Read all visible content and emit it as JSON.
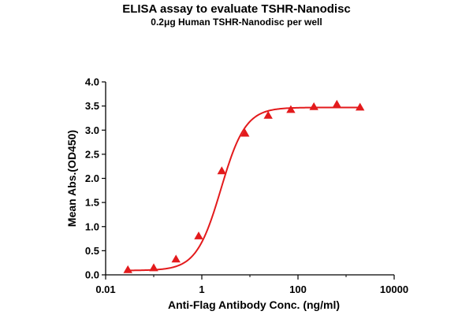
{
  "chart_data": {
    "type": "scatter",
    "title": "ELISA assay to evaluate TSHR-Nanodisc",
    "subtitle": "0.2μg Human TSHR-Nanodisc per well",
    "xlabel": "Anti-Flag Antibody Conc. (ng/ml)",
    "ylabel": "Mean Abs.(OD450)",
    "x_scale": "log",
    "xlim": [
      0.01,
      10000
    ],
    "ylim": [
      0,
      4.0
    ],
    "x_ticks": [
      {
        "value": 0.01,
        "label": "0.01"
      },
      {
        "value": 1,
        "label": "1"
      },
      {
        "value": 100,
        "label": "100"
      },
      {
        "value": 10000,
        "label": "10000"
      }
    ],
    "y_ticks": [
      {
        "value": 0.0,
        "label": "0.0"
      },
      {
        "value": 0.5,
        "label": "0.5"
      },
      {
        "value": 1.0,
        "label": "1.0"
      },
      {
        "value": 1.5,
        "label": "1.5"
      },
      {
        "value": 2.0,
        "label": "2.0"
      },
      {
        "value": 2.5,
        "label": "2.5"
      },
      {
        "value": 3.0,
        "label": "3.0"
      },
      {
        "value": 3.5,
        "label": "3.5"
      },
      {
        "value": 4.0,
        "label": "4.0"
      }
    ],
    "grid": false,
    "color": "#e31a1c",
    "marker": "triangle",
    "series": [
      {
        "x": [
          0.029,
          0.1,
          0.29,
          0.86,
          2.6,
          7.9,
          24,
          71,
          214,
          643,
          1950
        ],
        "y": [
          0.1,
          0.14,
          0.32,
          0.8,
          2.15,
          2.93,
          3.3,
          3.42,
          3.48,
          3.53,
          3.47
        ]
      }
    ],
    "fit_curve": {
      "model": "4PL",
      "bottom": 0.09,
      "top": 3.47,
      "ec50": 2.5,
      "hill": 1.7
    }
  }
}
